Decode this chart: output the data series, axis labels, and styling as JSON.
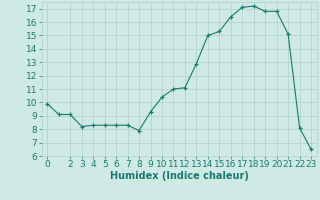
{
  "x": [
    0,
    1,
    2,
    3,
    4,
    5,
    6,
    7,
    8,
    9,
    10,
    11,
    12,
    13,
    14,
    15,
    16,
    17,
    18,
    19,
    20,
    21,
    22,
    23
  ],
  "y": [
    9.9,
    9.1,
    9.1,
    8.2,
    8.3,
    8.3,
    8.3,
    8.3,
    7.9,
    9.3,
    10.4,
    11.0,
    11.1,
    12.9,
    15.0,
    15.3,
    16.4,
    17.1,
    17.2,
    16.8,
    16.8,
    15.1,
    8.1,
    6.5
  ],
  "line_color": "#1a7a6e",
  "marker": "+",
  "xlabel": "Humidex (Indice chaleur)",
  "xlim": [
    -0.5,
    23.5
  ],
  "ylim": [
    6,
    17.5
  ],
  "yticks": [
    6,
    7,
    8,
    9,
    10,
    11,
    12,
    13,
    14,
    15,
    16,
    17
  ],
  "xticks": [
    0,
    2,
    3,
    4,
    5,
    6,
    7,
    8,
    9,
    10,
    11,
    12,
    13,
    14,
    15,
    16,
    17,
    18,
    19,
    20,
    21,
    22,
    23
  ],
  "bg_color": "#cfe9e5",
  "grid_color": "#aecfcb",
  "line_and_text_color": "#1a7a6e",
  "xlabel_fontsize": 7,
  "tick_fontsize": 6.5
}
